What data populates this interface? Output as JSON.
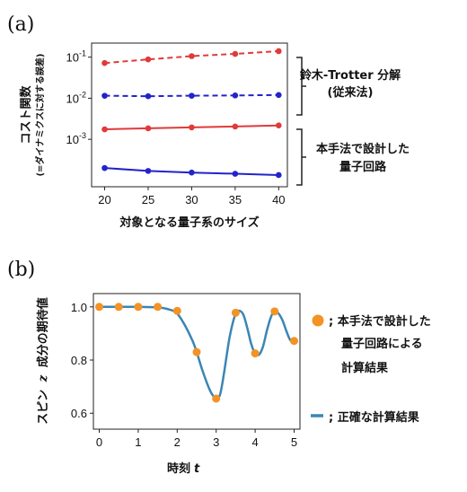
{
  "panels": {
    "a_label": "(a)",
    "b_label": "(b)"
  },
  "chart_data": [
    {
      "type": "line",
      "title": "",
      "xlabel": "対象となる量子系のサイズ",
      "ylabel": "コスト関数",
      "ylabel_sub": "(=ダイナミクスに対する誤差)",
      "x": [
        20,
        25,
        30,
        35,
        40
      ],
      "xticks": [
        "20",
        "25",
        "30",
        "35",
        "40"
      ],
      "xlim": [
        18.5,
        41
      ],
      "yscale": "log",
      "ylim": [
        7e-05,
        0.22
      ],
      "yticks": [
        {
          "value": 0.1,
          "base": "10",
          "exp": "-1"
        },
        {
          "value": 0.01,
          "base": "10",
          "exp": "-2"
        },
        {
          "value": 0.001,
          "base": "10",
          "exp": "-3"
        }
      ],
      "grid": false,
      "series": [
        {
          "values": [
            0.072,
            0.088,
            0.106,
            0.12,
            0.14
          ],
          "color": "#e03a3a",
          "dash": true
        },
        {
          "values": [
            0.0115,
            0.0112,
            0.0115,
            0.0117,
            0.012
          ],
          "color": "#2323cc",
          "dash": true
        },
        {
          "values": [
            0.00175,
            0.00185,
            0.00195,
            0.00205,
            0.00218
          ],
          "color": "#e03a3a",
          "dash": false
        },
        {
          "values": [
            0.0002,
            0.00017,
            0.000155,
            0.000145,
            0.000135
          ],
          "color": "#2323cc",
          "dash": false
        }
      ],
      "annotations": [
        {
          "lines": [
            "鈴木-Trotter 分解",
            "(従来法)"
          ]
        },
        {
          "lines": [
            "本手法で設計した",
            "量子回路"
          ]
        }
      ]
    },
    {
      "type": "line",
      "title": "",
      "xlabel": "時刻",
      "xlabel_var": "t",
      "ylabel": "スピン",
      "ylabel_var": "z",
      "ylabel_rest": "成分の期待値",
      "xlim": [
        -0.15,
        5.15
      ],
      "ylim": [
        0.54,
        1.05
      ],
      "xticks": [
        0,
        1,
        2,
        3,
        4,
        5
      ],
      "yticks": [
        "0.6",
        "0.8",
        "1.0"
      ],
      "ytick_values": [
        0.6,
        0.8,
        1.0
      ],
      "line_color": "#3a86b4",
      "point_color": "#f39324",
      "line_x": [
        0,
        0.5,
        1.0,
        1.5,
        1.8,
        2.0,
        2.2,
        2.4,
        2.5,
        2.65,
        2.8,
        2.9,
        3.0,
        3.1,
        3.2,
        3.35,
        3.5,
        3.6,
        3.7,
        3.8,
        3.9,
        4.0,
        4.1,
        4.2,
        4.3,
        4.4,
        4.5,
        4.6,
        4.7,
        4.8,
        4.9,
        5.0
      ],
      "line_y": [
        1.0,
        1.0,
        1.0,
        0.998,
        0.99,
        0.975,
        0.93,
        0.87,
        0.83,
        0.76,
        0.7,
        0.67,
        0.655,
        0.67,
        0.75,
        0.89,
        0.975,
        0.985,
        0.97,
        0.92,
        0.86,
        0.825,
        0.82,
        0.85,
        0.91,
        0.96,
        0.985,
        0.975,
        0.95,
        0.91,
        0.875,
        0.87
      ],
      "points_x": [
        0,
        0.5,
        1.0,
        1.5,
        2.0,
        2.5,
        3.0,
        3.5,
        4.0,
        4.5,
        5.0
      ],
      "points_y": [
        1.0,
        1.0,
        1.0,
        1.0,
        0.985,
        0.83,
        0.655,
        0.978,
        0.825,
        0.983,
        0.872
      ],
      "legend": [
        {
          "kind": "marker",
          "lines": [
            "; 本手法で設計した",
            "量子回路による",
            "計算結果"
          ]
        },
        {
          "kind": "line",
          "lines": [
            "; 正確な計算結果"
          ]
        }
      ]
    }
  ]
}
